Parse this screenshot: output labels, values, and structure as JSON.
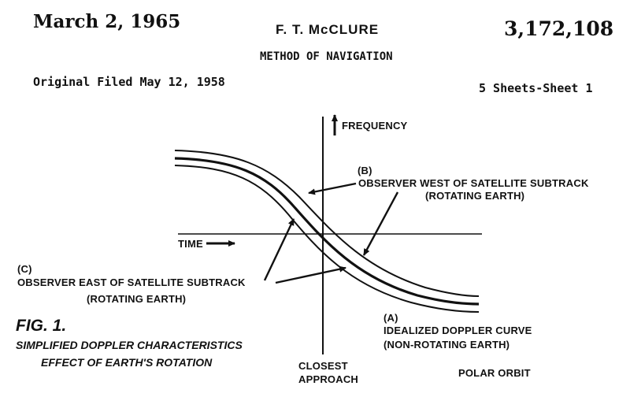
{
  "header": {
    "date": "March 2, 1965",
    "inventor": "F. T. McCLURE",
    "patent_number": "3,172,108",
    "title": "METHOD OF NAVIGATION",
    "filed": "Original Filed May 12, 1958",
    "sheets": "5 Sheets-Sheet 1"
  },
  "diagram": {
    "frequency_label": "FREQUENCY",
    "time_label": "TIME",
    "label_b_letter": "(B)",
    "label_b_text": "OBSERVER WEST OF SATELLITE SUBTRACK",
    "label_b_sub": "(ROTATING EARTH)",
    "label_c_letter": "(C)",
    "label_c_text": "OBSERVER EAST OF SATELLITE SUBTRACK",
    "label_c_sub": "(ROTATING EARTH)",
    "label_a_letter": "(A)",
    "label_a_text": "IDEALIZED DOPPLER CURVE",
    "label_a_sub": "(NON-ROTATING EARTH)",
    "closest_1": "CLOSEST",
    "closest_2": "APPROACH",
    "polar_orbit": "POLAR ORBIT"
  },
  "figure": {
    "number": "FIG. 1.",
    "caption_1": "SIMPLIFIED DOPPLER CHARACTERISTICS",
    "caption_2": "EFFECT OF EARTH'S ROTATION"
  }
}
